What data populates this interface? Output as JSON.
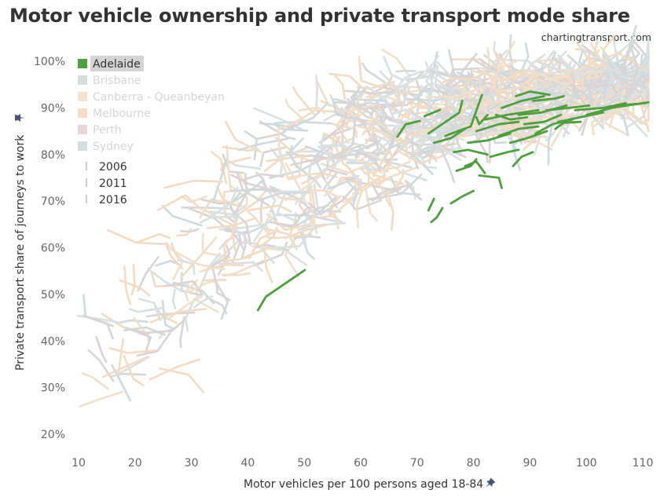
{
  "header": {
    "title": "Motor vehicle ownership and private transport mode share",
    "source": "chartingtransport.com"
  },
  "chart_data": {
    "type": "line",
    "title": "Motor vehicle ownership and private transport mode share",
    "xlabel": "Motor vehicles per 100 persons aged 18-84",
    "ylabel": "Private transport share of journeys to work",
    "xlim": [
      10,
      111
    ],
    "ylim": [
      17,
      101
    ],
    "x_ticks": [
      10,
      20,
      30,
      40,
      50,
      60,
      70,
      80,
      90,
      100,
      110
    ],
    "x_tick_labels": [
      "10",
      "20",
      "30",
      "40",
      "50",
      "60",
      "70",
      "80",
      "90",
      "100",
      "110"
    ],
    "y_ticks": [
      20,
      30,
      40,
      50,
      60,
      70,
      80,
      90,
      100
    ],
    "y_tick_labels": [
      "20%",
      "30%",
      "40%",
      "50%",
      "60%",
      "70%",
      "80%",
      "90%",
      "100%"
    ],
    "grid": false,
    "legend_position": "top-left",
    "legend": {
      "cities": [
        {
          "name": "Adelaide",
          "color": "#4e9f3d",
          "highlighted": true
        },
        {
          "name": "Brisbane",
          "color": "#d3dedd",
          "highlighted": false
        },
        {
          "name": "Canberra - Queanbeyan",
          "color": "#f5e3d1",
          "highlighted": false
        },
        {
          "name": "Melbourne",
          "color": "#f5dfc8",
          "highlighted": false
        },
        {
          "name": "Perth",
          "color": "#e8d6d6",
          "highlighted": false
        },
        {
          "name": "Sydney",
          "color": "#d5dde3",
          "highlighted": false
        }
      ],
      "years": [
        "2006",
        "2011",
        "2016"
      ]
    },
    "colors": {
      "highlight": "#4e9f3d",
      "background_gray": "#cfd9de",
      "background_beige": "#f2dcc4"
    },
    "highlighted_series": {
      "name": "Adelaide",
      "note": "each segment traces an area across 2006, 2011, 2016 as [x, y%] points",
      "segments": [
        [
          [
            41.8,
            46.6
          ],
          [
            43.2,
            49.5
          ],
          [
            50.1,
            55.2
          ]
        ],
        [
          [
            66.5,
            83.8
          ],
          [
            68.0,
            86.5
          ],
          [
            70.5,
            87.2
          ]
        ],
        [
          [
            71.3,
            88.2
          ],
          [
            74.1,
            89.6
          ]
        ],
        [
          [
            72.0,
            84.5
          ],
          [
            77.5,
            89.0
          ],
          [
            78.0,
            91.5
          ]
        ],
        [
          [
            75.0,
            84.0
          ],
          [
            79.5,
            86.0
          ],
          [
            81.5,
            92.8
          ]
        ],
        [
          [
            73.0,
            82.5
          ],
          [
            76.0,
            83.5
          ],
          [
            78.5,
            85.5
          ]
        ],
        [
          [
            76.5,
            80.5
          ],
          [
            79.0,
            81.0
          ],
          [
            82.5,
            80.0
          ]
        ],
        [
          [
            77.0,
            76.5
          ],
          [
            79.5,
            77.5
          ],
          [
            80.5,
            79.0
          ]
        ],
        [
          [
            79.0,
            82.5
          ],
          [
            82.5,
            83.0
          ],
          [
            86.5,
            84.5
          ]
        ],
        [
          [
            80.5,
            85.0
          ],
          [
            84.5,
            86.5
          ],
          [
            88.0,
            87.0
          ]
        ],
        [
          [
            82.0,
            87.5
          ],
          [
            86.0,
            88.5
          ],
          [
            91.5,
            89.5
          ]
        ],
        [
          [
            84.5,
            84.0
          ],
          [
            88.0,
            85.5
          ],
          [
            91.5,
            86.0
          ]
        ],
        [
          [
            85.0,
            90.0
          ],
          [
            88.5,
            91.5
          ],
          [
            92.5,
            92.5
          ]
        ],
        [
          [
            86.5,
            82.5
          ],
          [
            89.5,
            83.5
          ],
          [
            93.0,
            85.0
          ]
        ],
        [
          [
            88.0,
            88.5
          ],
          [
            92.0,
            89.0
          ],
          [
            96.5,
            90.5
          ]
        ],
        [
          [
            89.0,
            86.5
          ],
          [
            92.5,
            87.0
          ],
          [
            95.5,
            88.5
          ]
        ],
        [
          [
            90.5,
            91.5
          ],
          [
            94.5,
            92.0
          ],
          [
            96.0,
            92.5
          ]
        ],
        [
          [
            91.0,
            84.5
          ],
          [
            94.0,
            86.5
          ],
          [
            97.5,
            87.5
          ]
        ],
        [
          [
            93.0,
            89.5
          ],
          [
            97.0,
            90.0
          ],
          [
            100.5,
            90.5
          ]
        ],
        [
          [
            95.0,
            87.0
          ],
          [
            99.0,
            88.0
          ],
          [
            103.0,
            89.0
          ]
        ],
        [
          [
            98.0,
            89.5
          ],
          [
            103.0,
            90.0
          ],
          [
            107.0,
            91.0
          ]
        ],
        [
          [
            100.0,
            88.5
          ],
          [
            104.5,
            90.0
          ],
          [
            111.0,
            91.2
          ]
        ],
        [
          [
            104.0,
            90.0
          ],
          [
            107.5,
            90.7
          ],
          [
            110.5,
            91.0
          ]
        ],
        [
          [
            83.0,
            79.5
          ],
          [
            86.0,
            80.5
          ],
          [
            88.0,
            81.0
          ]
        ],
        [
          [
            81.0,
            75.5
          ],
          [
            84.5,
            75.0
          ],
          [
            85.0,
            72.8
          ]
        ],
        [
          [
            76.0,
            69.5
          ],
          [
            78.0,
            71.0
          ],
          [
            80.0,
            72.2
          ]
        ],
        [
          [
            72.5,
            65.5
          ],
          [
            73.5,
            66.5
          ],
          [
            74.5,
            68.5
          ]
        ],
        [
          [
            73.0,
            70.5
          ],
          [
            72.0,
            68.0
          ]
        ],
        [
          [
            80.5,
            88.0
          ],
          [
            81.0,
            86.5
          ],
          [
            82.5,
            88.5
          ]
        ],
        [
          [
            87.0,
            77.5
          ],
          [
            88.5,
            79.5
          ],
          [
            90.5,
            80.5
          ]
        ],
        [
          [
            78.5,
            77.5
          ],
          [
            80.5,
            78.5
          ],
          [
            82.0,
            76.0
          ]
        ],
        [
          [
            87.5,
            92.5
          ],
          [
            90.0,
            93.5
          ],
          [
            93.5,
            92.8
          ]
        ],
        [
          [
            94.5,
            85.5
          ],
          [
            96.0,
            86.8
          ],
          [
            99.0,
            87.0
          ]
        ],
        [
          [
            84.0,
            88.5
          ],
          [
            86.5,
            87.5
          ],
          [
            89.5,
            88.0
          ]
        ]
      ]
    },
    "background_series_note": "All other cities shown as faded gray/beige 3-point segments spanning x 13-111, y 18-99%"
  }
}
